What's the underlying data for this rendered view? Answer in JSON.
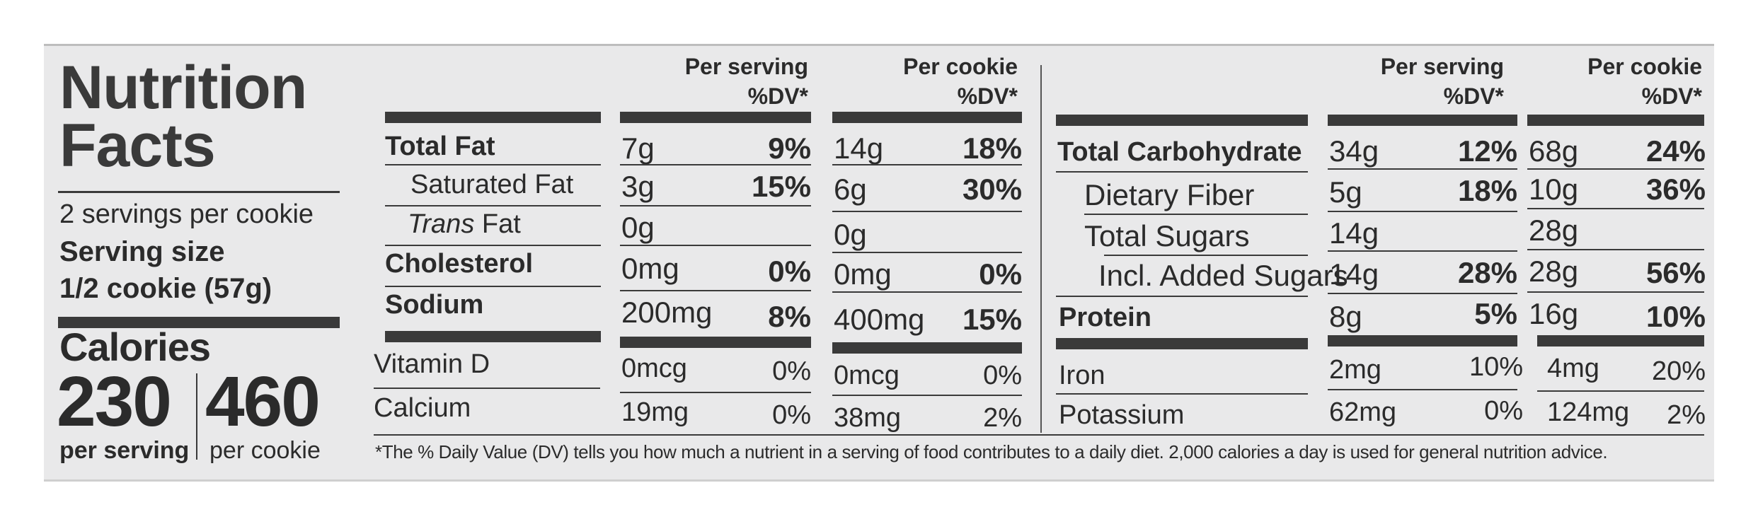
{
  "title_line1": "Nutrition",
  "title_line2": "Facts",
  "servings_per_container": "2 servings per cookie",
  "serving_size_label": "Serving size",
  "serving_size_value": "1/2 cookie (57g)",
  "calories_label": "Calories",
  "calories_per_serving": "230",
  "calories_per_serving_label": "per serving",
  "calories_per_cookie": "460",
  "calories_per_cookie_label": "per cookie",
  "col_headers": {
    "per_serving_line1": "Per serving",
    "per_cookie_line1": "Per cookie",
    "dv_line2": "%DV*"
  },
  "left_rows": [
    {
      "name": "Total Fat",
      "serv_amt": "7g",
      "serv_dv": "9%",
      "cookie_amt": "14g",
      "cookie_dv": "18%"
    },
    {
      "name": "Saturated Fat",
      "serv_amt": "3g",
      "serv_dv": "15%",
      "cookie_amt": "6g",
      "cookie_dv": "30%"
    },
    {
      "name_italic": "Trans",
      "name_rest": " Fat",
      "serv_amt": "0g",
      "cookie_amt": "0g"
    },
    {
      "name": "Cholesterol",
      "serv_amt": "0mg",
      "serv_dv": "0%",
      "cookie_amt": "0mg",
      "cookie_dv": "0%"
    },
    {
      "name": "Sodium",
      "serv_amt": "200mg",
      "serv_dv": "8%",
      "cookie_amt": "400mg",
      "cookie_dv": "15%"
    },
    {
      "name": "Vitamin D",
      "serv_amt": "0mcg",
      "serv_dv": "0%",
      "cookie_amt": "0mcg",
      "cookie_dv": "0%"
    },
    {
      "name": "Calcium",
      "serv_amt": "19mg",
      "serv_dv": "0%",
      "cookie_amt": "38mg",
      "cookie_dv": "2%"
    }
  ],
  "right_rows": [
    {
      "name": "Total Carbohydrate",
      "serv_amt": "34g",
      "serv_dv": "12%",
      "cookie_amt": "68g",
      "cookie_dv": "24%"
    },
    {
      "name": "Dietary Fiber",
      "serv_amt": "5g",
      "serv_dv": "18%",
      "cookie_amt": "10g",
      "cookie_dv": "36%"
    },
    {
      "name": "Total Sugars",
      "serv_amt": "14g",
      "cookie_amt": "28g"
    },
    {
      "name": "Incl. Added Sugars",
      "serv_amt": "14g",
      "serv_dv": "28%",
      "cookie_amt": "28g",
      "cookie_dv": "56%"
    },
    {
      "name": "Protein",
      "serv_amt": "8g",
      "serv_dv": "5%",
      "cookie_amt": "16g",
      "cookie_dv": "10%"
    },
    {
      "name": "Iron",
      "serv_amt": "2mg",
      "serv_dv": "10%",
      "cookie_amt": "4mg",
      "cookie_dv": "20%"
    },
    {
      "name": "Potassium",
      "serv_amt": "62mg",
      "serv_dv": "0%",
      "cookie_amt": "124mg",
      "cookie_dv": "2%"
    }
  ],
  "footnote": "*The % Daily Value (DV) tells you how much a nutrient in a serving of food contributes to a daily diet. 2,000 calories a day is used for general nutrition advice."
}
